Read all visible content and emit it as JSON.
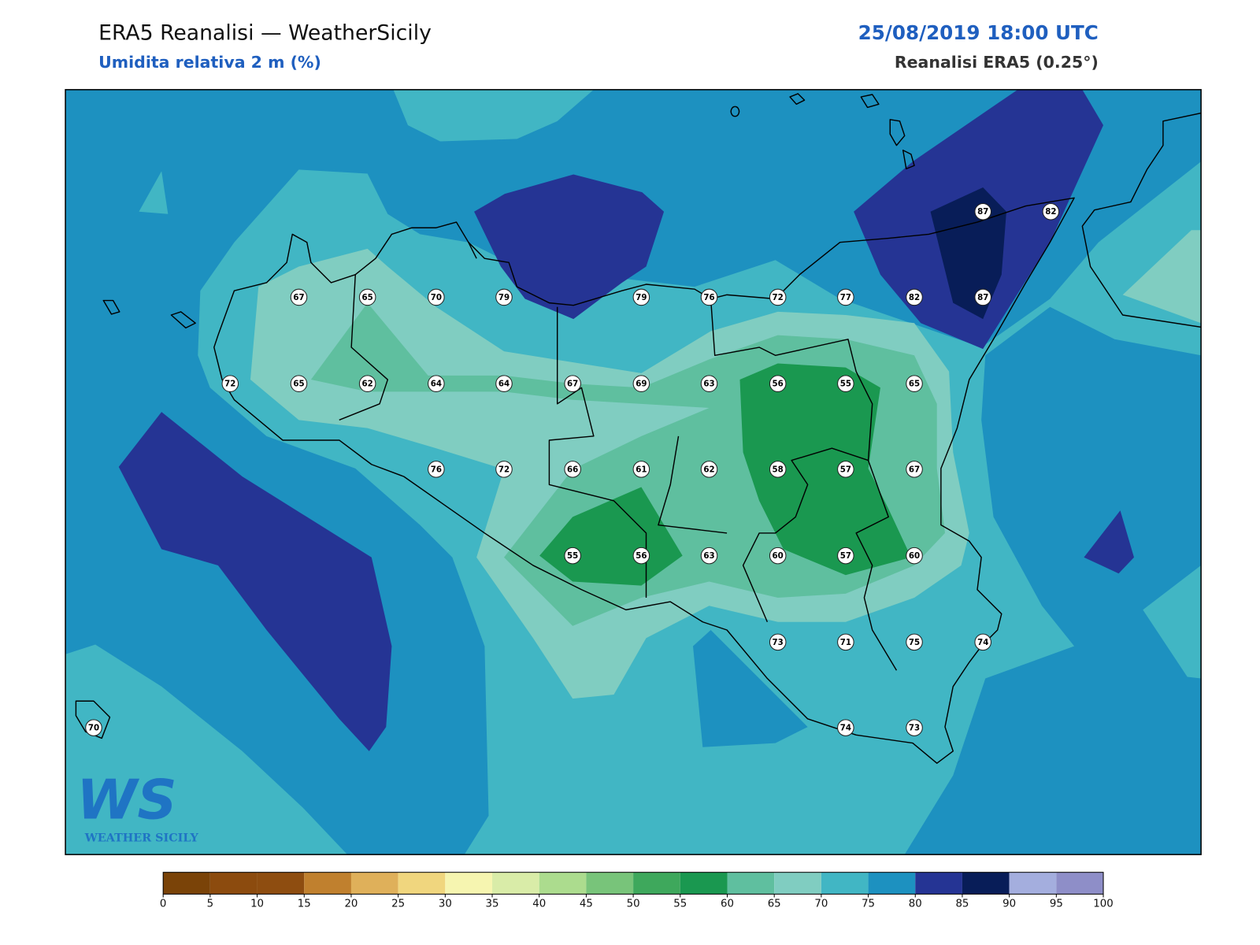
{
  "header": {
    "title": "ERA5 Reanalisi — WeatherSicily",
    "subtitle": "Umidita relativa 2 m (%)",
    "datetime": "25/08/2019 18:00 UTC",
    "source": "Reanalisi ERA5 (0.25°)"
  },
  "map": {
    "stations": [
      87,
      82,
      67,
      65,
      70,
      79,
      79,
      76,
      72,
      77,
      82,
      87,
      72,
      65,
      62,
      64,
      64,
      67,
      69,
      63,
      56,
      55,
      65,
      76,
      72,
      66,
      61,
      62,
      58,
      57,
      67,
      55,
      56,
      63,
      60,
      57,
      60,
      73,
      71,
      75,
      74,
      70,
      74,
      73
    ]
  },
  "colorbar": {
    "ticks": [
      0,
      5,
      10,
      15,
      20,
      25,
      30,
      35,
      40,
      45,
      50,
      55,
      60,
      65,
      70,
      75,
      80,
      85,
      90,
      95,
      100
    ],
    "colors": [
      "#7a4308",
      "#8c4b0e",
      "#8e4d10",
      "#c0802e",
      "#dfb05a",
      "#f0d67e",
      "#f6f5b0",
      "#d9eca8",
      "#acdc8e",
      "#78c47a",
      "#3ea85c",
      "#1a9850",
      "#5fbf9f",
      "#80cdc1",
      "#41b6c4",
      "#1d91c0",
      "#253494",
      "#081d58",
      "#a4aede",
      "#8e8ec8"
    ]
  },
  "logo": {
    "mark": "WS",
    "name": "WEATHER SICILY"
  }
}
